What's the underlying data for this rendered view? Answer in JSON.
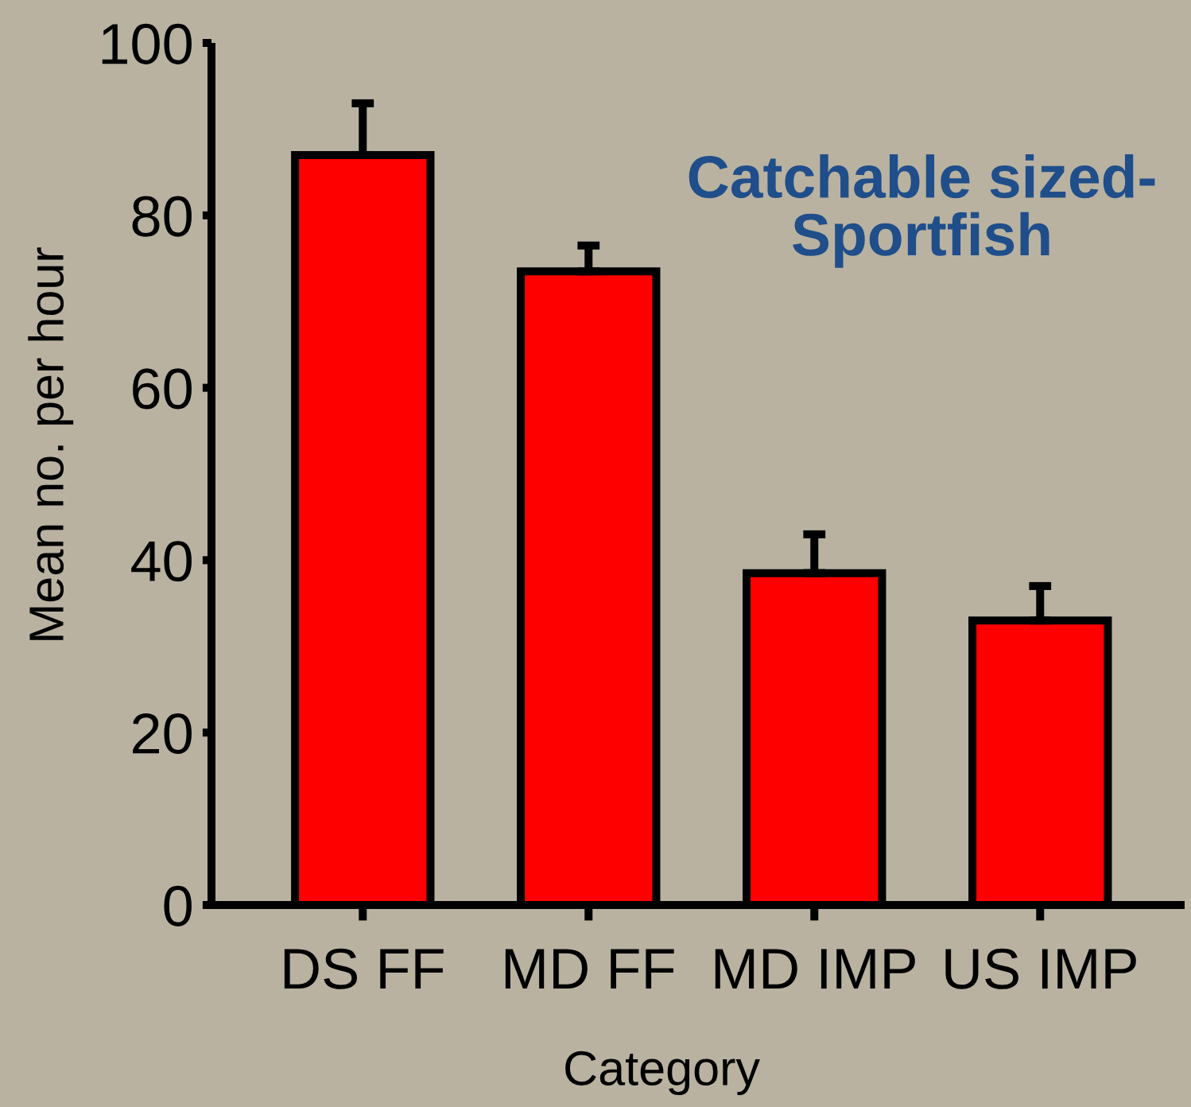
{
  "chart_data": {
    "type": "bar",
    "title": "Catchable sized-\nSportfish",
    "xlabel": "Category",
    "ylabel": "Mean no. per hour",
    "categories": [
      "DS FF",
      "MD FF",
      "MD IMP",
      "US IMP"
    ],
    "values": [
      87,
      73.5,
      38.5,
      33
    ],
    "color": "#ff0000",
    "errors": [
      [
        87,
        93
      ],
      [
        73.5,
        76.5
      ],
      [
        38.5,
        43
      ],
      [
        33,
        37
      ]
    ],
    "ylim": [
      0,
      100
    ],
    "yticks": [
      0,
      20,
      40,
      60,
      80,
      100
    ],
    "grid": false,
    "legend": false
  }
}
